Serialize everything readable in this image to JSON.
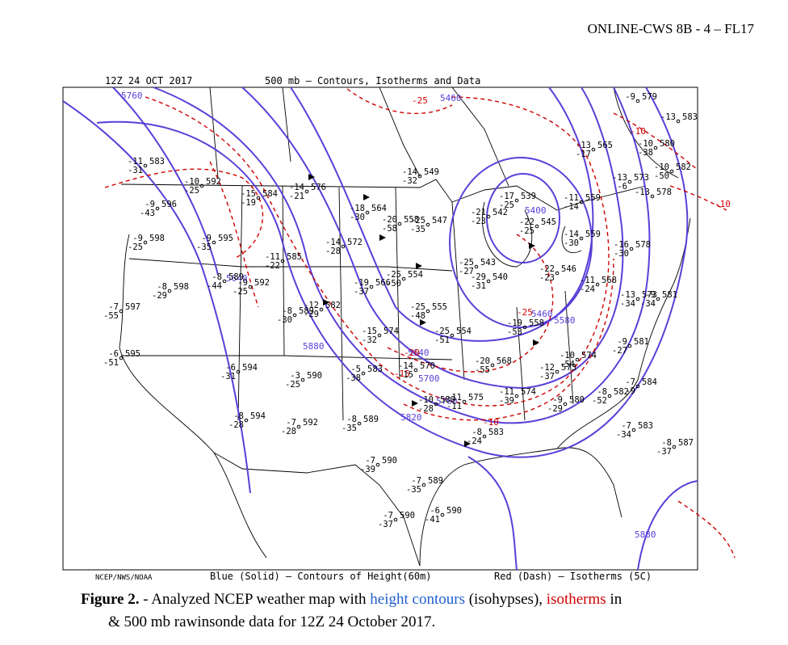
{
  "header": "ONLINE-CWS 8B - 4 – FL17",
  "map": {
    "valid_time": "12Z 24 OCT 2017",
    "title": "500 mb – Contours, Isotherms and Data",
    "footer_source": "NCEP/NWS/NOAA",
    "footer_blue": "Blue (Solid) – Contours of Height(60m)",
    "footer_red": "Red (Dash) – Isotherms (5C)",
    "contour_labels": [
      {
        "text": "5760",
        "color": "#5a3fd8"
      },
      {
        "text": "5460",
        "color": "#5a3fd8"
      },
      {
        "text": "5400",
        "color": "#5a3fd8"
      },
      {
        "text": "5640",
        "color": "#5a3fd8"
      },
      {
        "text": "5880",
        "color": "#5a3fd8"
      },
      {
        "text": "5640",
        "color": "#5a3fd8"
      },
      {
        "text": "5700",
        "color": "#5a3fd8"
      },
      {
        "text": "5820",
        "color": "#5a3fd8"
      },
      {
        "text": "5460",
        "color": "#5a3fd8"
      },
      {
        "text": "5580",
        "color": "#5a3fd8"
      },
      {
        "text": "5760",
        "color": "#5a3fd8"
      },
      {
        "text": "5880",
        "color": "#5a3fd8"
      },
      {
        "text": "-25",
        "color": "#d00000"
      },
      {
        "text": "-10",
        "color": "#d00000"
      },
      {
        "text": "-10",
        "color": "#d00000"
      },
      {
        "text": "-10",
        "color": "#d00000"
      },
      {
        "text": "-15",
        "color": "#d00000"
      },
      {
        "text": "-25",
        "color": "#d00000"
      },
      {
        "text": "-20",
        "color": "#d00000"
      }
    ],
    "stations": [
      {
        "t": "-9",
        "h": "579"
      },
      {
        "t": "-13",
        "h": "583"
      },
      {
        "t": "-13",
        "d": "-17",
        "h": "565"
      },
      {
        "t": "-10",
        "d": "-38",
        "h": "580"
      },
      {
        "t": "-10",
        "d": "-50",
        "h": "582"
      },
      {
        "t": "-13",
        "d": "-6",
        "h": "573"
      },
      {
        "t": "-13",
        "h": "578"
      },
      {
        "t": "-11",
        "d": "-14",
        "h": "559"
      },
      {
        "t": "-11",
        "d": "-31",
        "h": "583"
      },
      {
        "t": "-10",
        "d": "-25",
        "h": "592"
      },
      {
        "t": "-9",
        "d": "-43",
        "h": "596"
      },
      {
        "t": "-15",
        "d": "-19",
        "h": "584"
      },
      {
        "t": "-14",
        "d": "-21",
        "h": "576"
      },
      {
        "t": "-9",
        "d": "-25",
        "h": "598"
      },
      {
        "t": "-9",
        "d": "-35",
        "h": "595"
      },
      {
        "t": "-18",
        "d": "-30",
        "h": "564"
      },
      {
        "t": "-20",
        "d": "-58",
        "h": "558"
      },
      {
        "t": "-25",
        "d": "-35",
        "h": "547"
      },
      {
        "t": "-14",
        "d": "-32",
        "h": "549"
      },
      {
        "t": "-21",
        "d": "-23",
        "h": "542"
      },
      {
        "t": "-17",
        "d": "-25",
        "h": "539"
      },
      {
        "t": "-22",
        "d": "-25",
        "h": "545"
      },
      {
        "t": "-14",
        "d": "-30",
        "h": "559"
      },
      {
        "t": "-16",
        "d": "-30",
        "h": "578"
      },
      {
        "t": "-11",
        "d": "-22",
        "h": "585"
      },
      {
        "t": "-14",
        "d": "-28",
        "h": "572"
      },
      {
        "t": "-8",
        "d": "-29",
        "h": "598"
      },
      {
        "t": "-8",
        "d": "-44",
        "h": "589"
      },
      {
        "t": "-9",
        "d": "-25",
        "h": "592"
      },
      {
        "t": "-7",
        "d": "-55",
        "h": "597"
      },
      {
        "t": "-19",
        "d": "-37",
        "h": "566"
      },
      {
        "t": "-25",
        "d": "-50",
        "h": "554"
      },
      {
        "t": "-25",
        "d": "-27",
        "h": "543"
      },
      {
        "t": "-29",
        "d": "-31",
        "h": "540"
      },
      {
        "t": "-22",
        "d": "-23",
        "h": "546"
      },
      {
        "t": "-11",
        "d": "-24",
        "h": "568"
      },
      {
        "t": "-13",
        "d": "-34",
        "h": "573"
      },
      {
        "t": "-9",
        "d": "-34",
        "h": "581"
      },
      {
        "t": "-12",
        "d": "-29",
        "h": "582"
      },
      {
        "t": "-8",
        "d": "-30",
        "h": "589"
      },
      {
        "t": "-25",
        "d": "-48",
        "h": "555"
      },
      {
        "t": "-25",
        "d": "-51",
        "h": "554"
      },
      {
        "t": "-15",
        "d": "-32",
        "h": "574"
      },
      {
        "t": "-19",
        "d": "-53",
        "h": "558"
      },
      {
        "t": "-6",
        "d": "-51",
        "h": "595"
      },
      {
        "t": "-6",
        "d": "-31",
        "h": "594"
      },
      {
        "t": "-3",
        "d": "-25",
        "h": "590"
      },
      {
        "t": "-5",
        "d": "-38",
        "h": "583"
      },
      {
        "t": "-14",
        "d": "-15",
        "h": "570"
      },
      {
        "t": "-20",
        "d": "-55",
        "h": "568"
      },
      {
        "t": "-12",
        "d": "-37",
        "h": "573"
      },
      {
        "t": "-10",
        "d": "-54",
        "h": "574"
      },
      {
        "t": "-9",
        "d": "-27",
        "h": "581"
      },
      {
        "t": "-8",
        "d": "-28",
        "h": "594"
      },
      {
        "t": "-7",
        "d": "-28",
        "h": "592"
      },
      {
        "t": "-8",
        "d": "-35",
        "h": "589"
      },
      {
        "t": "-10",
        "d": "-28",
        "h": "580"
      },
      {
        "t": "-11",
        "d": "-11",
        "h": "575"
      },
      {
        "t": "-11",
        "d": "-39",
        "h": "574"
      },
      {
        "t": "-9",
        "d": "-29",
        "h": "580"
      },
      {
        "t": "-8",
        "d": "-52",
        "h": "582"
      },
      {
        "t": "-7",
        "d": "-9",
        "h": "584"
      },
      {
        "t": "-7",
        "d": "-34",
        "h": "583"
      },
      {
        "t": "-8",
        "d": "-37",
        "h": "587"
      },
      {
        "t": "-8",
        "d": "-24",
        "h": "583"
      },
      {
        "t": "-7",
        "d": "-39",
        "h": "590"
      },
      {
        "t": "-7",
        "d": "-35",
        "h": "589"
      },
      {
        "t": "-6",
        "d": "-41",
        "h": "590"
      },
      {
        "t": "-7",
        "d": "-37",
        "h": "590"
      }
    ]
  },
  "caption": {
    "label": "Figure 2.",
    "text_1": " - Analyzed NCEP weather map with ",
    "link_height": "height contours",
    "text_2": " (isohypses), ",
    "link_isotherms": "isotherms",
    "text_3": " in",
    "line_2": "& 500 mb rawinsonde data for 12Z 24 October 2017."
  }
}
